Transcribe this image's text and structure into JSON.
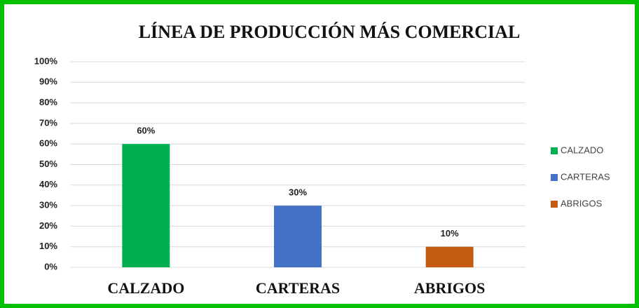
{
  "chart_data": {
    "type": "bar",
    "title": "LÍNEA DE PRODUCCIÓN MÁS COMERCIAL",
    "categories": [
      "CALZADO",
      "CARTERAS",
      "ABRIGOS"
    ],
    "values": [
      60,
      30,
      10
    ],
    "value_labels": [
      "60%",
      "30%",
      "10%"
    ],
    "colors": [
      "#00b050",
      "#4472c4",
      "#c55a11"
    ],
    "ylim": [
      0,
      100
    ],
    "yticks": [
      {
        "value": 0,
        "label": "0%"
      },
      {
        "value": 10,
        "label": "10%"
      },
      {
        "value": 20,
        "label": "20%"
      },
      {
        "value": 30,
        "label": "30%"
      },
      {
        "value": 40,
        "label": "40%"
      },
      {
        "value": 50,
        "label": "50%"
      },
      {
        "value": 60,
        "label": "60%"
      },
      {
        "value": 70,
        "label": "70%"
      },
      {
        "value": 80,
        "label": "80%"
      },
      {
        "value": 90,
        "label": "90%"
      },
      {
        "value": 100,
        "label": "100%"
      }
    ],
    "grid": true,
    "legend": "right"
  }
}
